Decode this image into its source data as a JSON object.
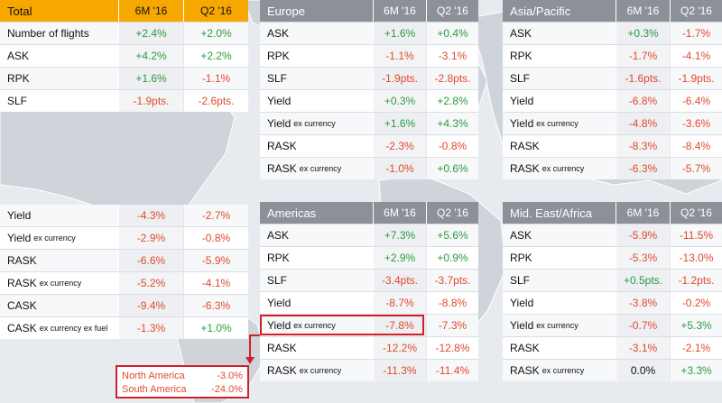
{
  "colors": {
    "positive": "#2b9b3f",
    "negative": "#e04a2d",
    "header": "#8c9198",
    "accent": "#f6a800",
    "highlight": "#d0202b"
  },
  "total": {
    "title": "Total",
    "col1": "6M '16",
    "col2": "Q2 '16",
    "rows": [
      {
        "label": "Number of flights",
        "v1": "+2.4%",
        "v2": "+2.0%"
      },
      {
        "label": "ASK",
        "v1": "+4.2%",
        "v2": "+2.2%"
      },
      {
        "label": "RPK",
        "v1": "+1.6%",
        "v2": "-1.1%"
      },
      {
        "label": "SLF",
        "v1": "-1.9pts.",
        "v2": "-2.6pts."
      }
    ]
  },
  "europe": {
    "title": "Europe",
    "col1": "6M '16",
    "col2": "Q2 '16",
    "rows": [
      {
        "label": "ASK",
        "v1": "+1.6%",
        "v2": "+0.4%"
      },
      {
        "label": "RPK",
        "v1": "-1.1%",
        "v2": "-3.1%"
      },
      {
        "label": "SLF",
        "v1": "-1.9pts.",
        "v2": "-2.8pts."
      },
      {
        "label": "Yield",
        "v1": "+0.3%",
        "v2": "+2.8%"
      },
      {
        "label": "Yield",
        "sub": "ex currency",
        "v1": "+1.6%",
        "v2": "+4.3%"
      },
      {
        "label": "RASK",
        "v1": "-2.3%",
        "v2": "-0.8%"
      },
      {
        "label": "RASK",
        "sub": "ex currency",
        "v1": "-1.0%",
        "v2": "+0.6%"
      }
    ]
  },
  "asia": {
    "title": "Asia/Pacific",
    "col1": "6M '16",
    "col2": "Q2 '16",
    "rows": [
      {
        "label": "ASK",
        "v1": "+0.3%",
        "v2": "-1.7%"
      },
      {
        "label": "RPK",
        "v1": "-1.7%",
        "v2": "-4.1%"
      },
      {
        "label": "SLF",
        "v1": "-1.6pts.",
        "v2": "-1.9pts."
      },
      {
        "label": "Yield",
        "v1": "-6.8%",
        "v2": "-6.4%"
      },
      {
        "label": "Yield",
        "sub": "ex currency",
        "v1": "-4.8%",
        "v2": "-3.6%"
      },
      {
        "label": "RASK",
        "v1": "-8.3%",
        "v2": "-8.4%"
      },
      {
        "label": "RASK",
        "sub": "ex currency",
        "v1": "-6.3%",
        "v2": "-5.7%"
      }
    ]
  },
  "yield_table": {
    "rows": [
      {
        "label": "Yield",
        "v1": "-4.3%",
        "v2": "-2.7%"
      },
      {
        "label": "Yield",
        "sub": "ex currency",
        "v1": "-2.9%",
        "v2": "-0.8%"
      },
      {
        "label": "RASK",
        "v1": "-6.6%",
        "v2": "-5.9%"
      },
      {
        "label": "RASK",
        "sub": "ex currency",
        "v1": "-5.2%",
        "v2": "-4.1%"
      },
      {
        "label": "CASK",
        "v1": "-9.4%",
        "v2": "-6.3%"
      },
      {
        "label": "CASK",
        "sub": "ex currency ex fuel",
        "v1": "-1.3%",
        "v2": "+1.0%"
      }
    ]
  },
  "americas": {
    "title": "Americas",
    "col1": "6M '16",
    "col2": "Q2 '16",
    "rows": [
      {
        "label": "ASK",
        "v1": "+7.3%",
        "v2": "+5.6%"
      },
      {
        "label": "RPK",
        "v1": "+2.9%",
        "v2": "+0.9%"
      },
      {
        "label": "SLF",
        "v1": "-3.4pts.",
        "v2": "-3.7pts."
      },
      {
        "label": "Yield",
        "v1": "-8.7%",
        "v2": "-8.8%"
      },
      {
        "label": "Yield",
        "sub": "ex currency",
        "v1": "-7.8%",
        "v2": "-7.3%"
      },
      {
        "label": "RASK",
        "v1": "-12.2%",
        "v2": "-12.8%"
      },
      {
        "label": "RASK",
        "sub": "ex currency",
        "v1": "-11.3%",
        "v2": "-11.4%"
      }
    ]
  },
  "mideast": {
    "title": "Mid. East/Africa",
    "col1": "6M '16",
    "col2": "Q2 '16",
    "rows": [
      {
        "label": "ASK",
        "v1": "-5.9%",
        "v2": "-11.5%"
      },
      {
        "label": "RPK",
        "v1": "-5.3%",
        "v2": "-13.0%"
      },
      {
        "label": "SLF",
        "v1": "+0.5pts.",
        "v2": "-1.2pts."
      },
      {
        "label": "Yield",
        "v1": "-3.8%",
        "v2": "-0.2%"
      },
      {
        "label": "Yield",
        "sub": "ex currency",
        "v1": "-0.7%",
        "v2": "+5.3%"
      },
      {
        "label": "RASK",
        "v1": "-3.1%",
        "v2": "-2.1%"
      },
      {
        "label": "RASK",
        "sub": "ex currency",
        "v1": "0.0%",
        "v2": "+3.3%"
      }
    ]
  },
  "callout": {
    "rows": [
      {
        "label": "North America",
        "value": "-3.0%"
      },
      {
        "label": "South America",
        "value": "-24.0%"
      }
    ]
  }
}
